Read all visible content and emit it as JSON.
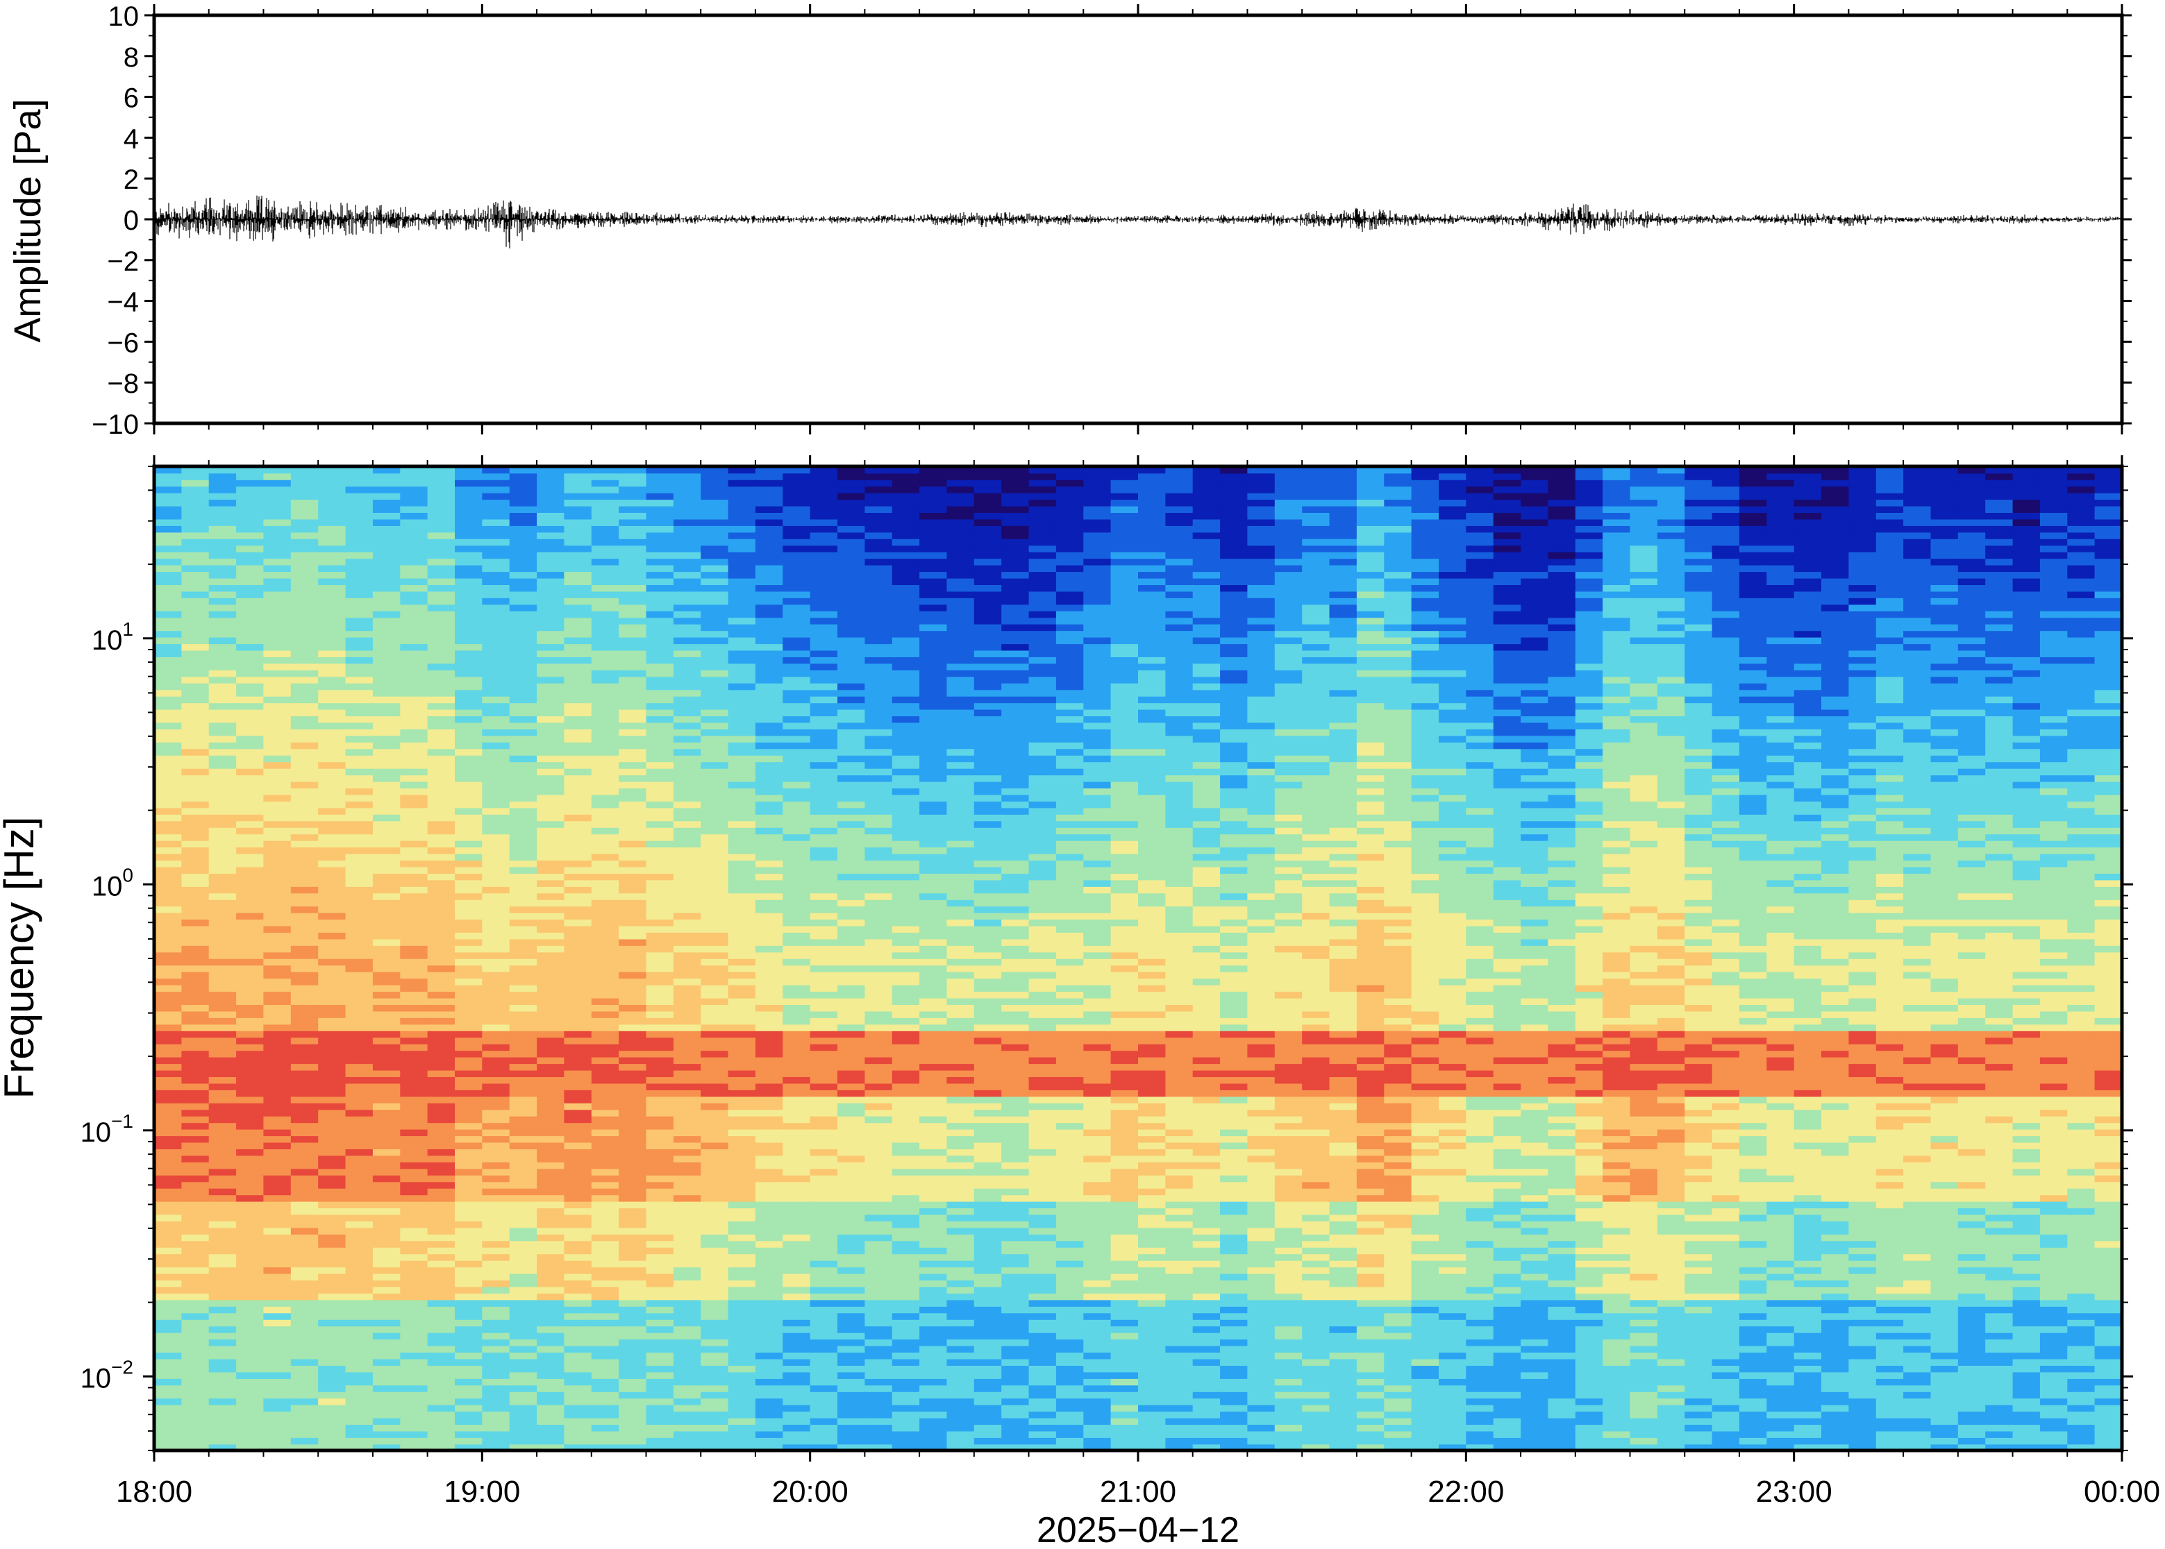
{
  "chart_data": [
    {
      "type": "line",
      "panel": "waveform",
      "title": "",
      "ylabel": "Amplitude [Pa]",
      "xlabel": "",
      "ylim": [
        -10,
        10
      ],
      "y_ticks": [
        10,
        8,
        6,
        4,
        2,
        0,
        -2,
        -4,
        -6,
        -8,
        -10
      ],
      "y_tick_labels": [
        "10",
        "8",
        "6",
        "4",
        "2",
        "0",
        "−2",
        "−4",
        "−6",
        "−8",
        "−10"
      ],
      "x_range_hours": [
        18,
        24
      ],
      "envelope": {
        "x": [
          "18:00",
          "18:10",
          "18:20",
          "18:30",
          "18:40",
          "18:50",
          "19:00",
          "19:05",
          "19:10",
          "19:20",
          "19:30",
          "19:40",
          "19:50",
          "20:00",
          "20:10",
          "20:20",
          "20:30",
          "20:40",
          "20:50",
          "21:00",
          "21:10",
          "21:20",
          "21:30",
          "21:40",
          "21:50",
          "22:00",
          "22:10",
          "22:20",
          "22:30",
          "22:40",
          "22:50",
          "23:00",
          "23:10",
          "23:20",
          "23:30",
          "23:40",
          "23:50",
          "00:00"
        ],
        "amplitude": [
          0.9,
          1.1,
          1.2,
          0.9,
          0.8,
          0.5,
          0.6,
          1.5,
          0.6,
          0.4,
          0.4,
          0.25,
          0.2,
          0.2,
          0.2,
          0.25,
          0.4,
          0.35,
          0.25,
          0.2,
          0.2,
          0.3,
          0.35,
          0.7,
          0.35,
          0.2,
          0.3,
          0.8,
          0.5,
          0.25,
          0.2,
          0.3,
          0.35,
          0.2,
          0.2,
          0.25,
          0.15,
          0.15
        ]
      },
      "color": "#000000"
    },
    {
      "type": "heatmap",
      "panel": "spectrogram",
      "title": "",
      "ylabel": "Frequency [Hz]",
      "xlabel": "2025−04−12",
      "y_scale": "log",
      "ylim": [
        0.005,
        50
      ],
      "y_ticks": [
        10,
        1,
        0.1,
        0.01
      ],
      "y_tick_labels": [
        {
          "base": "10",
          "exp": "1"
        },
        {
          "base": "10",
          "exp": "0"
        },
        {
          "base": "10",
          "exp": "−1"
        },
        {
          "base": "10",
          "exp": "−2"
        }
      ],
      "x_tick_labels": [
        "18:00",
        "19:00",
        "20:00",
        "21:00",
        "22:00",
        "23:00",
        "00:00"
      ],
      "colormap": "jet",
      "colors": [
        "#1a0a6e",
        "#0a1fb5",
        "#1660e0",
        "#2aa4f2",
        "#5fd6e6",
        "#a6e6b0",
        "#f3ec93",
        "#fbc66f",
        "#f7914e",
        "#e8473b"
      ],
      "features": {
        "microbarom_band_hz": 0.18,
        "high_noise_periods": [
          "18:00-19:35",
          "21:30-21:40",
          "22:10-22:20"
        ],
        "quiet_periods": [
          "19:40-20:30",
          "21:40-22:00",
          "22:30-23:00",
          "23:10-00:00"
        ]
      }
    }
  ]
}
